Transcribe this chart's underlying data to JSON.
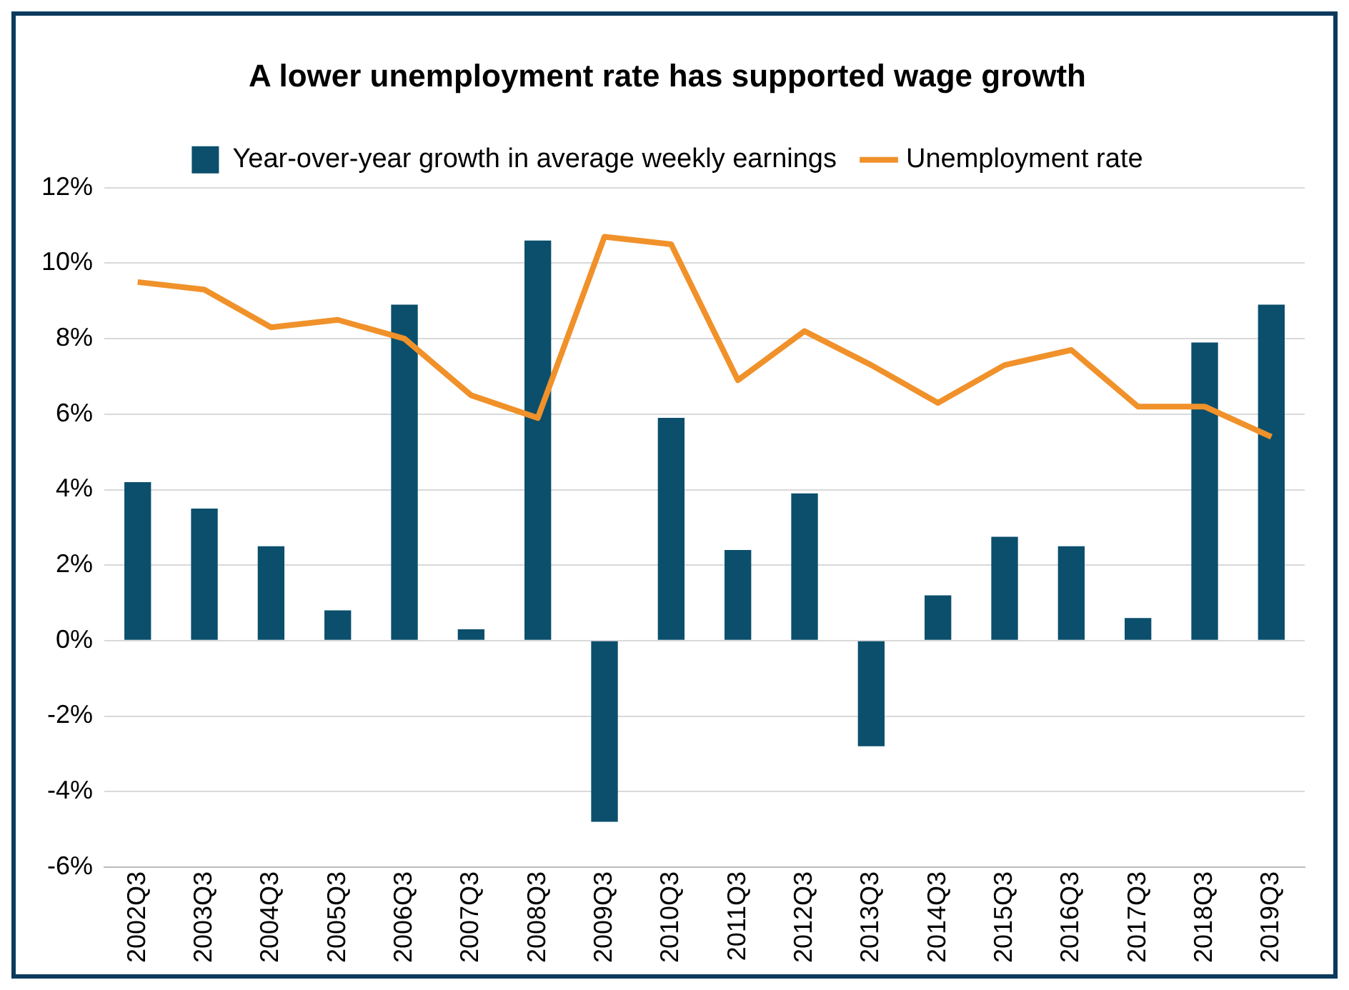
{
  "chart_data": {
    "type": "bar",
    "title": "A lower unemployment rate has supported wage growth",
    "categories": [
      "2002Q3",
      "2003Q3",
      "2004Q3",
      "2005Q3",
      "2006Q3",
      "2007Q3",
      "2008Q3",
      "2009Q3",
      "2010Q3",
      "2011Q3",
      "2012Q3",
      "2013Q3",
      "2014Q3",
      "2015Q3",
      "2016Q3",
      "2017Q3",
      "2018Q3",
      "2019Q3"
    ],
    "series": [
      {
        "name": "Year-over-year growth in average weekly earnings",
        "color": "#0b4f6c",
        "values": [
          4.2,
          3.5,
          2.5,
          0.8,
          8.9,
          0.3,
          10.6,
          -4.8,
          5.9,
          2.4,
          3.9,
          -2.8,
          1.2,
          2.75,
          2.5,
          0.6,
          7.9,
          8.9
        ]
      },
      {
        "name": "Unemployment rate",
        "type": "line",
        "color": "#f0912a",
        "values": [
          9.5,
          9.3,
          8.3,
          8.5,
          8.0,
          6.5,
          5.9,
          10.7,
          10.5,
          6.9,
          8.2,
          7.3,
          6.3,
          7.3,
          7.7,
          6.2,
          6.2,
          5.4
        ]
      }
    ],
    "ylim": [
      -6,
      12
    ],
    "yticks": [
      {
        "value": -6,
        "label": "-6%"
      },
      {
        "value": -4,
        "label": "-4%"
      },
      {
        "value": -2,
        "label": "-2%"
      },
      {
        "value": 0,
        "label": "0%"
      },
      {
        "value": 2,
        "label": "2%"
      },
      {
        "value": 4,
        "label": "4%"
      },
      {
        "value": 6,
        "label": "6%"
      },
      {
        "value": 8,
        "label": "8%"
      },
      {
        "value": 10,
        "label": "10%"
      },
      {
        "value": 12,
        "label": "12%"
      }
    ],
    "grid": "y",
    "legend": "top",
    "marker": "none"
  }
}
